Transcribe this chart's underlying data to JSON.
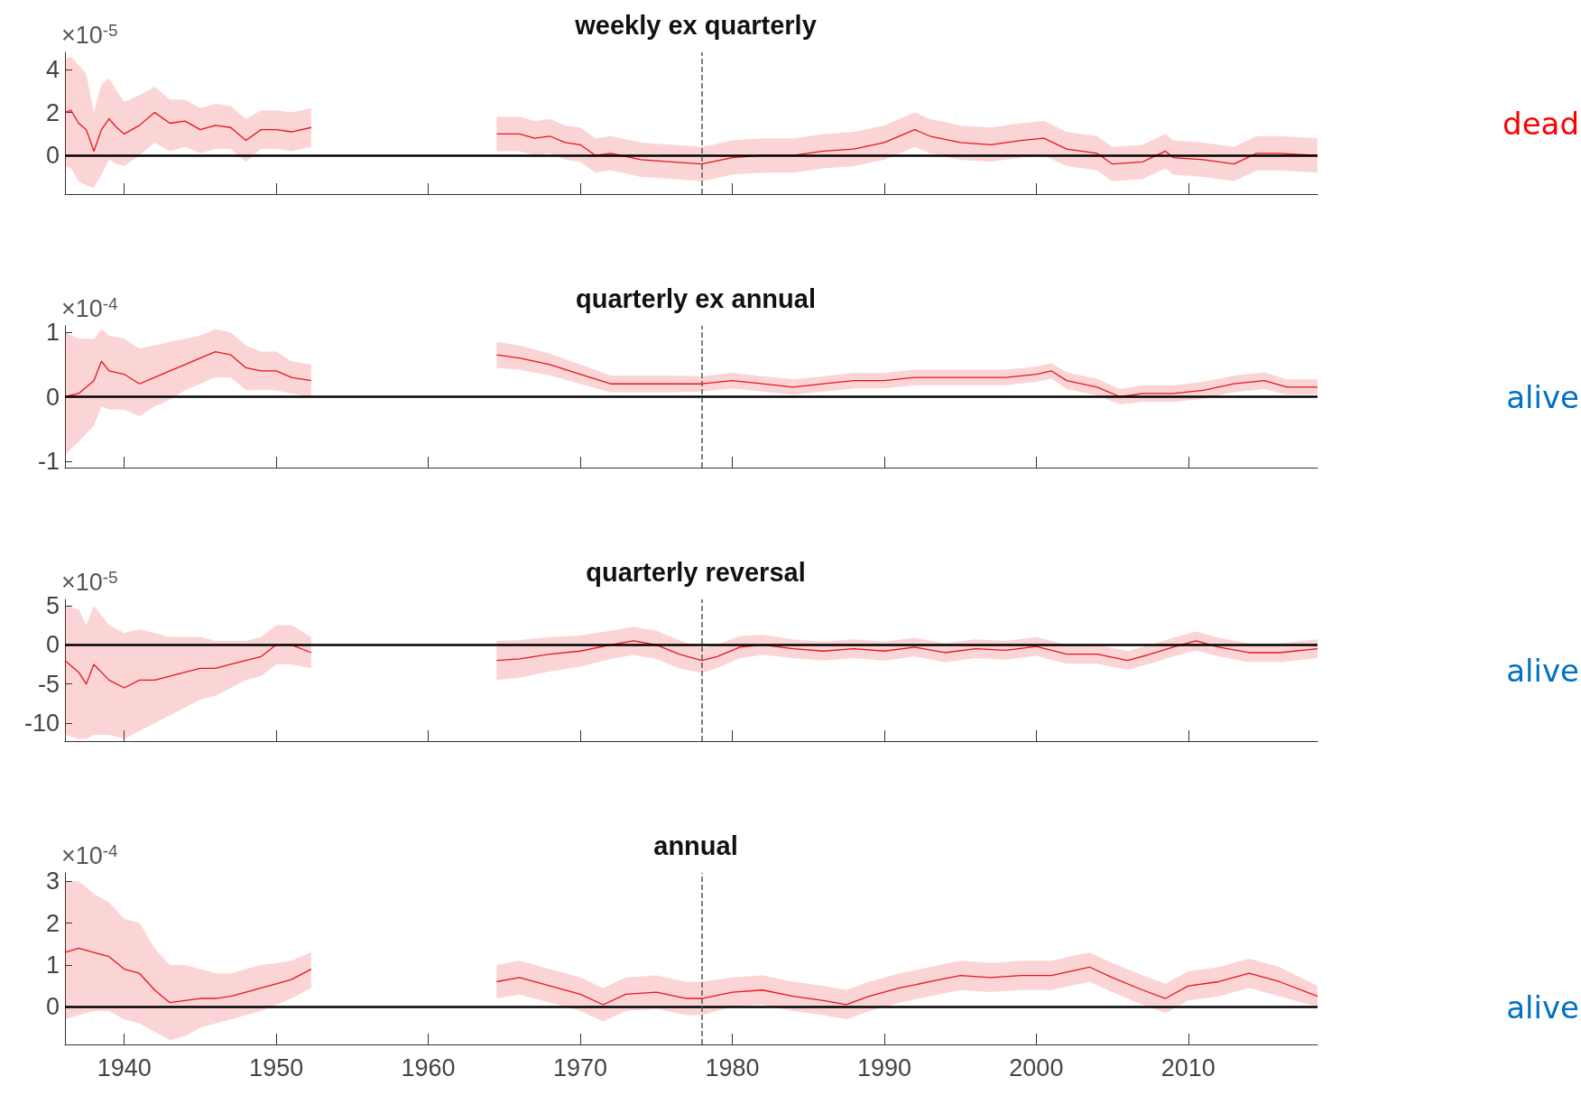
{
  "chart_data": [
    {
      "type": "line",
      "title": "weekly ex quarterly",
      "annotations": [
        "×10$^{-5}$",
        "dead"
      ],
      "xlim": [
        1936.1,
        2018.5
      ],
      "xticks": [
        1940,
        1950,
        1960,
        1970,
        1980,
        1990,
        2000,
        2010
      ],
      "ylim": [
        -1.8,
        4.8
      ],
      "yticks": [
        0,
        2,
        4
      ],
      "tick_labels": "y",
      "ref_lines": [
        {
          "axis": "y",
          "value": 0,
          "color": "#000000",
          "line_style": "solid"
        },
        {
          "axis": "x",
          "value": 1978,
          "color": "#555555",
          "line_style": "dashed"
        }
      ],
      "series": [
        {
          "color": "#e8141b",
          "x": [
            1936.1,
            1936.5,
            1937,
            1937.5,
            1938,
            1938.5,
            1939,
            1939.5,
            1940,
            1941,
            1942,
            1943,
            1944,
            1945,
            1946,
            1947,
            1948,
            1949,
            1950,
            1951,
            1952.3,
            1958,
            1964.5,
            1966,
            1967,
            1968,
            1969,
            1970,
            1971,
            1972,
            1974,
            1976,
            1978,
            1980,
            1982,
            1984,
            1986,
            1988,
            1990,
            1992,
            1993,
            1995,
            1997,
            1999,
            2000.5,
            2002,
            2004,
            2005,
            2007,
            2008.5,
            2009,
            2011,
            2013,
            2014.5,
            2016,
            2018.5
          ],
          "values": [
            2.0,
            2.1,
            1.5,
            1.2,
            0.2,
            1.2,
            1.7,
            1.3,
            1.0,
            1.4,
            2.0,
            1.5,
            1.6,
            1.2,
            1.4,
            1.3,
            0.7,
            1.2,
            1.2,
            1.1,
            1.3,
            null,
            1.0,
            1.0,
            0.8,
            0.9,
            0.6,
            0.5,
            0.0,
            0.1,
            -0.2,
            -0.3,
            -0.4,
            -0.1,
            0.0,
            0.0,
            0.2,
            0.3,
            0.6,
            1.2,
            0.9,
            0.6,
            0.5,
            0.7,
            0.8,
            0.3,
            0.1,
            -0.4,
            -0.3,
            0.2,
            -0.1,
            -0.2,
            -0.4,
            0.1,
            0.1,
            0.0
          ],
          "lower": [
            -0.5,
            -0.6,
            -1.2,
            -1.4,
            -1.5,
            -0.9,
            -0.2,
            -0.4,
            -0.5,
            0.0,
            0.6,
            0.2,
            0.4,
            0.1,
            0.3,
            0.3,
            -0.3,
            0.3,
            0.3,
            0.2,
            0.4,
            null,
            0.2,
            0.2,
            0.0,
            0.1,
            -0.2,
            -0.3,
            -0.8,
            -0.7,
            -1.0,
            -1.1,
            -1.2,
            -0.9,
            -0.8,
            -0.8,
            -0.6,
            -0.5,
            -0.2,
            0.4,
            0.1,
            -0.2,
            -0.3,
            -0.1,
            0.0,
            -0.5,
            -0.7,
            -1.2,
            -1.1,
            -0.6,
            -0.9,
            -1.0,
            -1.2,
            -0.7,
            -0.7,
            -0.8
          ],
          "upper": [
            4.5,
            4.6,
            4.2,
            3.8,
            2.0,
            3.3,
            3.6,
            3.0,
            2.5,
            2.8,
            3.2,
            2.6,
            2.6,
            2.2,
            2.4,
            2.3,
            1.7,
            2.1,
            2.1,
            2.0,
            2.2,
            null,
            1.8,
            1.8,
            1.6,
            1.7,
            1.4,
            1.3,
            0.8,
            0.9,
            0.6,
            0.5,
            0.4,
            0.7,
            0.8,
            0.8,
            1.0,
            1.1,
            1.4,
            2.0,
            1.7,
            1.4,
            1.3,
            1.5,
            1.6,
            1.1,
            0.9,
            0.4,
            0.5,
            1.0,
            0.7,
            0.6,
            0.4,
            0.9,
            0.9,
            0.8
          ]
        }
      ]
    },
    {
      "type": "line",
      "title": "quarterly ex annual",
      "annotations": [
        "×10$^{-4}$",
        "alive"
      ],
      "xlim": [
        1936.1,
        2018.5
      ],
      "xticks": [
        1940,
        1950,
        1960,
        1970,
        1980,
        1990,
        2000,
        2010
      ],
      "ylim": [
        -1.1,
        1.1
      ],
      "yticks": [
        -1,
        0,
        1
      ],
      "tick_labels": "y",
      "ref_lines": [
        {
          "axis": "y",
          "value": 0,
          "color": "#000000",
          "line_style": "solid"
        },
        {
          "axis": "x",
          "value": 1978,
          "color": "#555555",
          "line_style": "dashed"
        }
      ],
      "series": [
        {
          "color": "#e8141b",
          "x": [
            1936.1,
            1937,
            1938,
            1938.5,
            1939,
            1940,
            1941,
            1942,
            1943,
            1944,
            1945,
            1946,
            1947,
            1948,
            1949,
            1950,
            1951,
            1952.3,
            1958,
            1964.5,
            1966,
            1968,
            1970,
            1972,
            1974,
            1976,
            1978,
            1980,
            1982,
            1984,
            1986,
            1988,
            1990,
            1992,
            1994,
            1996,
            1998,
            2000,
            2001,
            2002,
            2004,
            2005.5,
            2007,
            2009,
            2011,
            2013,
            2015,
            2016.5,
            2018.5
          ],
          "values": [
            0.0,
            0.05,
            0.25,
            0.55,
            0.4,
            0.35,
            0.2,
            0.3,
            0.4,
            0.5,
            0.6,
            0.7,
            0.65,
            0.45,
            0.4,
            0.4,
            0.3,
            0.25,
            null,
            0.65,
            0.6,
            0.5,
            0.35,
            0.2,
            0.2,
            0.2,
            0.2,
            0.25,
            0.2,
            0.15,
            0.2,
            0.25,
            0.25,
            0.3,
            0.3,
            0.3,
            0.3,
            0.35,
            0.4,
            0.25,
            0.15,
            0.0,
            0.05,
            0.05,
            0.1,
            0.2,
            0.25,
            0.15,
            0.15
          ],
          "lower": [
            -0.9,
            -0.7,
            -0.45,
            -0.15,
            -0.2,
            -0.2,
            -0.3,
            -0.15,
            -0.05,
            0.1,
            0.2,
            0.3,
            0.3,
            0.1,
            0.1,
            0.1,
            0.05,
            0.0,
            null,
            0.45,
            0.42,
            0.33,
            0.2,
            0.07,
            0.07,
            0.07,
            0.08,
            0.13,
            0.08,
            0.03,
            0.08,
            0.13,
            0.13,
            0.18,
            0.18,
            0.18,
            0.18,
            0.23,
            0.28,
            0.12,
            0.02,
            -0.12,
            -0.08,
            -0.08,
            -0.03,
            0.07,
            0.12,
            0.03,
            0.03
          ],
          "upper": [
            1.0,
            0.9,
            0.9,
            1.05,
            0.95,
            0.9,
            0.75,
            0.8,
            0.85,
            0.9,
            0.95,
            1.05,
            1.0,
            0.8,
            0.7,
            0.7,
            0.55,
            0.5,
            null,
            0.85,
            0.8,
            0.67,
            0.5,
            0.33,
            0.33,
            0.33,
            0.32,
            0.37,
            0.32,
            0.27,
            0.32,
            0.37,
            0.37,
            0.42,
            0.42,
            0.42,
            0.42,
            0.47,
            0.52,
            0.38,
            0.28,
            0.12,
            0.18,
            0.18,
            0.23,
            0.33,
            0.38,
            0.27,
            0.27
          ]
        }
      ]
    },
    {
      "type": "line",
      "title": "quarterly reversal",
      "annotations": [
        "×10$^{-5}$",
        "alive"
      ],
      "xlim": [
        1936.1,
        2018.5
      ],
      "xticks": [
        1940,
        1950,
        1960,
        1970,
        1980,
        1990,
        2000,
        2010
      ],
      "ylim": [
        -12.3,
        5.8
      ],
      "yticks": [
        -10,
        -5,
        0,
        5
      ],
      "tick_labels": "y",
      "ref_lines": [
        {
          "axis": "y",
          "value": 0,
          "color": "#000000",
          "line_style": "solid"
        },
        {
          "axis": "x",
          "value": 1978,
          "color": "#555555",
          "line_style": "dashed"
        }
      ],
      "series": [
        {
          "color": "#e8141b",
          "x": [
            1936.1,
            1937,
            1937.5,
            1938,
            1939,
            1940,
            1941,
            1942,
            1943,
            1944,
            1945,
            1946,
            1947,
            1948,
            1949,
            1950,
            1951,
            1952.3,
            1958,
            1964.5,
            1966,
            1968,
            1970,
            1972,
            1973.5,
            1975,
            1976.5,
            1978,
            1979,
            1980.5,
            1982,
            1984,
            1986,
            1988,
            1990,
            1992,
            1994,
            1996,
            1998,
            2000,
            2002,
            2004,
            2006,
            2007.5,
            2009,
            2010.5,
            2012,
            2014,
            2016,
            2018.5
          ],
          "values": [
            -2,
            -3.5,
            -5,
            -2.5,
            -4.5,
            -5.5,
            -4.5,
            -4.5,
            -4,
            -3.5,
            -3,
            -3,
            -2.5,
            -2,
            -1.5,
            0,
            0,
            -1,
            null,
            -2,
            -1.8,
            -1.2,
            -0.8,
            0,
            0.5,
            0,
            -1.2,
            -2,
            -1.5,
            -0.3,
            0,
            -0.5,
            -0.8,
            -0.5,
            -0.8,
            -0.3,
            -1,
            -0.5,
            -0.7,
            -0.2,
            -1.2,
            -1.2,
            -2,
            -1.2,
            -0.3,
            0.5,
            -0.3,
            -1,
            -1,
            -0.5
          ],
          "lower": [
            -11.5,
            -12,
            -12,
            -11.5,
            -11.5,
            -12,
            -11,
            -10,
            -9,
            -8,
            -7,
            -6.5,
            -5.5,
            -4.5,
            -4,
            -2.5,
            -2.5,
            -3,
            null,
            -4.5,
            -4.2,
            -3.4,
            -2.8,
            -1.8,
            -1.3,
            -1.8,
            -3,
            -3.6,
            -3,
            -1.7,
            -1.3,
            -1.7,
            -2,
            -1.7,
            -2,
            -1.5,
            -2.2,
            -1.7,
            -1.9,
            -1.4,
            -2.4,
            -2.4,
            -3.2,
            -2.4,
            -1.5,
            -0.7,
            -1.5,
            -2.2,
            -2.2,
            -1.7
          ],
          "upper": [
            5,
            4.5,
            2.5,
            5,
            2.5,
            1.5,
            2,
            1.5,
            1,
            1,
            1,
            0.5,
            0.5,
            0.5,
            1,
            2.5,
            2.5,
            1,
            null,
            0.5,
            0.6,
            1,
            1.2,
            1.8,
            2.3,
            1.8,
            0.6,
            -0.4,
            0,
            1.1,
            1.3,
            0.7,
            0.4,
            0.7,
            0.4,
            0.9,
            0.2,
            0.7,
            0.5,
            1,
            0,
            0,
            -0.8,
            0,
            0.9,
            1.7,
            0.9,
            0.2,
            0.2,
            0.7
          ]
        }
      ]
    },
    {
      "type": "line",
      "title": "annual",
      "annotations": [
        "×10$^{-4}$",
        "alive"
      ],
      "xlim": [
        1936.1,
        2018.5
      ],
      "xticks": [
        1940,
        1950,
        1960,
        1970,
        1980,
        1990,
        2000,
        2010
      ],
      "ylim": [
        -0.9,
        3.2
      ],
      "yticks": [
        0,
        1,
        2,
        3
      ],
      "ref_lines": [
        {
          "axis": "y",
          "value": 0,
          "color": "#000000",
          "line_style": "solid"
        },
        {
          "axis": "x",
          "value": 1978,
          "color": "#555555",
          "line_style": "dashed"
        }
      ],
      "series": [
        {
          "color": "#e8141b",
          "x": [
            1936.1,
            1937,
            1938,
            1939,
            1940,
            1941,
            1942,
            1943,
            1944,
            1945,
            1946,
            1947,
            1948,
            1949,
            1950,
            1951,
            1952.3,
            1958,
            1964.5,
            1966,
            1968,
            1970,
            1971.5,
            1973,
            1975,
            1977,
            1978,
            1980,
            1982,
            1984,
            1986,
            1987.5,
            1989,
            1991,
            1993,
            1995,
            1997,
            1999,
            2001,
            2003.5,
            2005,
            2007,
            2008.5,
            2010,
            2012,
            2014,
            2016,
            2018.5
          ],
          "values": [
            1.3,
            1.4,
            1.3,
            1.2,
            0.9,
            0.8,
            0.4,
            0.1,
            0.15,
            0.2,
            0.2,
            0.25,
            0.35,
            0.45,
            0.55,
            0.65,
            0.9,
            null,
            0.6,
            0.7,
            0.5,
            0.3,
            0.05,
            0.3,
            0.35,
            0.2,
            0.2,
            0.35,
            0.4,
            0.25,
            0.15,
            0.05,
            0.25,
            0.45,
            0.6,
            0.75,
            0.7,
            0.75,
            0.75,
            0.95,
            0.7,
            0.4,
            0.2,
            0.5,
            0.6,
            0.8,
            0.6,
            0.25
          ],
          "lower": [
            -0.3,
            -0.2,
            -0.1,
            -0.1,
            -0.3,
            -0.4,
            -0.6,
            -0.8,
            -0.7,
            -0.5,
            -0.4,
            -0.3,
            -0.2,
            -0.1,
            0.05,
            0.2,
            0.45,
            null,
            0.2,
            0.3,
            0.1,
            -0.1,
            -0.35,
            -0.1,
            -0.05,
            -0.2,
            -0.2,
            0.0,
            0.05,
            -0.1,
            -0.2,
            -0.3,
            -0.1,
            0.1,
            0.25,
            0.4,
            0.35,
            0.4,
            0.4,
            0.6,
            0.35,
            0.05,
            -0.15,
            0.15,
            0.25,
            0.45,
            0.25,
            0.0
          ],
          "upper": [
            3.0,
            3.0,
            2.7,
            2.5,
            2.1,
            2.0,
            1.4,
            1.0,
            1.0,
            0.9,
            0.8,
            0.8,
            0.9,
            1.0,
            1.05,
            1.1,
            1.3,
            null,
            1.0,
            1.1,
            0.9,
            0.7,
            0.45,
            0.7,
            0.75,
            0.6,
            0.6,
            0.7,
            0.75,
            0.6,
            0.5,
            0.4,
            0.6,
            0.8,
            0.95,
            1.1,
            1.05,
            1.1,
            1.1,
            1.3,
            1.05,
            0.75,
            0.55,
            0.85,
            0.95,
            1.15,
            0.95,
            0.5
          ]
        }
      ]
    }
  ]
}
